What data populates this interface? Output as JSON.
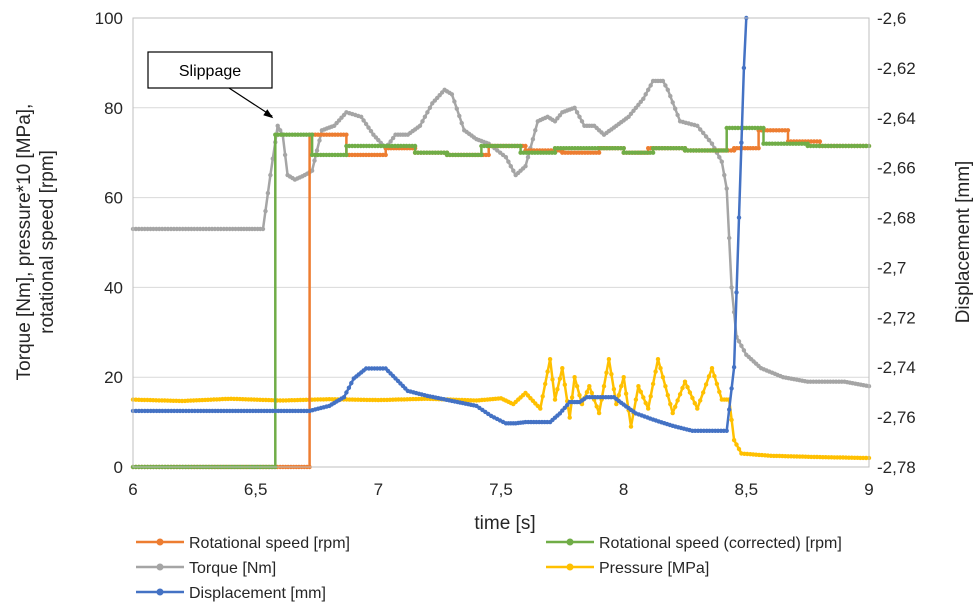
{
  "chart_data": {
    "type": "line",
    "title": "",
    "xlabel": "time [s]",
    "ylabel_left": [
      "Torque [Nm], pressure*10 [MPa],",
      "rotational speed [rpm]"
    ],
    "ylabel_right": "Displacement [mm]",
    "xlim": [
      6,
      9
    ],
    "ylim_left": [
      0,
      100
    ],
    "ylim_right": [
      -2.78,
      -2.6
    ],
    "x_ticks": [
      "6",
      "6,5",
      "7",
      "7,5",
      "8",
      "8,5",
      "9"
    ],
    "y_left_ticks": [
      "0",
      "20",
      "40",
      "60",
      "80",
      "100"
    ],
    "y_right_ticks": [
      "-2,78",
      "-2,76",
      "-2,74",
      "-2,72",
      "-2,7",
      "-2,68",
      "-2,66",
      "-2,64",
      "-2,62",
      "-2,6"
    ],
    "grid": "horizontal",
    "legend_position": "bottom",
    "annotation": {
      "text": "Slippage",
      "x": 6.58,
      "y": 77
    },
    "series": [
      {
        "name": "Rotational speed [rpm]",
        "axis": "left",
        "color": "#ED7D31",
        "points": [
          [
            6,
            0
          ],
          [
            6.6,
            0
          ],
          [
            6.72,
            0
          ],
          [
            6.72,
            74
          ],
          [
            6.87,
            74
          ],
          [
            6.87,
            69.5
          ],
          [
            7.03,
            69.5
          ],
          [
            7.03,
            71
          ],
          [
            7.15,
            71
          ],
          [
            7.15,
            70
          ],
          [
            7.28,
            70
          ],
          [
            7.28,
            69.5
          ],
          [
            7.45,
            69.5
          ],
          [
            7.45,
            71.5
          ],
          [
            7.6,
            71.5
          ],
          [
            7.6,
            70.5
          ],
          [
            7.75,
            70.5
          ],
          [
            7.75,
            70
          ],
          [
            7.9,
            70
          ],
          [
            7.9,
            71
          ],
          [
            8.0,
            71
          ],
          [
            8.0,
            70
          ],
          [
            8.1,
            70
          ],
          [
            8.1,
            71
          ],
          [
            8.25,
            71
          ],
          [
            8.25,
            70.5
          ],
          [
            8.45,
            70.5
          ],
          [
            8.45,
            71
          ],
          [
            8.55,
            71
          ],
          [
            8.55,
            75
          ],
          [
            8.67,
            75
          ],
          [
            8.67,
            72.5
          ],
          [
            8.8,
            72.5
          ],
          [
            8.8,
            71.5
          ],
          [
            9,
            71.5
          ]
        ]
      },
      {
        "name": "Rotational speed (corrected) [rpm]",
        "axis": "left",
        "color": "#70AD47",
        "points": [
          [
            6,
            0
          ],
          [
            6.58,
            0
          ],
          [
            6.58,
            74
          ],
          [
            6.73,
            74
          ],
          [
            6.73,
            69.5
          ],
          [
            6.87,
            69.5
          ],
          [
            6.87,
            71.5
          ],
          [
            7.15,
            71.5
          ],
          [
            7.15,
            70
          ],
          [
            7.28,
            70
          ],
          [
            7.28,
            69.5
          ],
          [
            7.42,
            69.5
          ],
          [
            7.42,
            71.5
          ],
          [
            7.58,
            71.5
          ],
          [
            7.58,
            70
          ],
          [
            7.72,
            70
          ],
          [
            7.72,
            71
          ],
          [
            8.0,
            71
          ],
          [
            8.0,
            70
          ],
          [
            8.12,
            70
          ],
          [
            8.12,
            71
          ],
          [
            8.25,
            71
          ],
          [
            8.25,
            70.5
          ],
          [
            8.42,
            70.5
          ],
          [
            8.42,
            75.5
          ],
          [
            8.57,
            75.5
          ],
          [
            8.57,
            72
          ],
          [
            8.75,
            72
          ],
          [
            8.75,
            71.5
          ],
          [
            9,
            71.5
          ]
        ]
      },
      {
        "name": "Torque [Nm]",
        "axis": "left",
        "color": "#A5A5A5",
        "points": [
          [
            6,
            53
          ],
          [
            6.25,
            53
          ],
          [
            6.43,
            53
          ],
          [
            6.53,
            53
          ],
          [
            6.56,
            65
          ],
          [
            6.59,
            76
          ],
          [
            6.61,
            74
          ],
          [
            6.63,
            65
          ],
          [
            6.66,
            64
          ],
          [
            6.7,
            65
          ],
          [
            6.73,
            66
          ],
          [
            6.77,
            75
          ],
          [
            6.82,
            76
          ],
          [
            6.87,
            79
          ],
          [
            6.93,
            78
          ],
          [
            6.98,
            74
          ],
          [
            7.03,
            71
          ],
          [
            7.07,
            74
          ],
          [
            7.12,
            74
          ],
          [
            7.17,
            76
          ],
          [
            7.22,
            81
          ],
          [
            7.27,
            84
          ],
          [
            7.3,
            83
          ],
          [
            7.35,
            75
          ],
          [
            7.4,
            73
          ],
          [
            7.45,
            72
          ],
          [
            7.52,
            69
          ],
          [
            7.56,
            65
          ],
          [
            7.6,
            67
          ],
          [
            7.65,
            77
          ],
          [
            7.69,
            78
          ],
          [
            7.72,
            77
          ],
          [
            7.75,
            79
          ],
          [
            7.8,
            80
          ],
          [
            7.84,
            76
          ],
          [
            7.88,
            76
          ],
          [
            7.92,
            74
          ],
          [
            7.97,
            76
          ],
          [
            8.02,
            78
          ],
          [
            8.08,
            82
          ],
          [
            8.12,
            86
          ],
          [
            8.16,
            86
          ],
          [
            8.18,
            84
          ],
          [
            8.23,
            77
          ],
          [
            8.3,
            76
          ],
          [
            8.36,
            72
          ],
          [
            8.4,
            68
          ],
          [
            8.42,
            62
          ],
          [
            8.44,
            40
          ],
          [
            8.46,
            29
          ],
          [
            8.5,
            25
          ],
          [
            8.56,
            22
          ],
          [
            8.65,
            20
          ],
          [
            8.75,
            19
          ],
          [
            8.82,
            19
          ],
          [
            8.9,
            19
          ],
          [
            9,
            18
          ]
        ]
      },
      {
        "name": "Pressure [MPa]",
        "axis": "left",
        "color": "#FFC000",
        "points": [
          [
            6,
            15
          ],
          [
            6.2,
            14.7
          ],
          [
            6.4,
            15.2
          ],
          [
            6.6,
            14.8
          ],
          [
            6.8,
            15.1
          ],
          [
            7.0,
            14.9
          ],
          [
            7.2,
            15.2
          ],
          [
            7.4,
            14.8
          ],
          [
            7.5,
            15.3
          ],
          [
            7.55,
            14
          ],
          [
            7.6,
            16.5
          ],
          [
            7.66,
            13
          ],
          [
            7.7,
            24
          ],
          [
            7.72,
            15
          ],
          [
            7.75,
            22
          ],
          [
            7.78,
            11
          ],
          [
            7.8,
            20
          ],
          [
            7.83,
            14
          ],
          [
            7.86,
            18
          ],
          [
            7.9,
            12
          ],
          [
            7.94,
            24
          ],
          [
            7.97,
            14
          ],
          [
            8.0,
            20
          ],
          [
            8.03,
            9
          ],
          [
            8.06,
            18
          ],
          [
            8.1,
            13
          ],
          [
            8.14,
            24
          ],
          [
            8.18,
            16
          ],
          [
            8.2,
            12
          ],
          [
            8.25,
            19
          ],
          [
            8.3,
            13
          ],
          [
            8.36,
            22
          ],
          [
            8.4,
            15
          ],
          [
            8.43,
            15
          ],
          [
            8.45,
            6
          ],
          [
            8.48,
            3
          ],
          [
            8.6,
            2.5
          ],
          [
            8.8,
            2.2
          ],
          [
            9,
            2
          ]
        ]
      },
      {
        "name": "Displacement [mm]",
        "axis": "right",
        "color": "#4472C4",
        "points": [
          [
            6,
            -2.7575
          ],
          [
            6.3,
            -2.7575
          ],
          [
            6.5,
            -2.7575
          ],
          [
            6.72,
            -2.7575
          ],
          [
            6.8,
            -2.7555
          ],
          [
            6.86,
            -2.752
          ],
          [
            6.9,
            -2.7445
          ],
          [
            6.95,
            -2.7405
          ],
          [
            7.03,
            -2.7405
          ],
          [
            7.07,
            -2.7445
          ],
          [
            7.12,
            -2.7495
          ],
          [
            7.2,
            -2.7515
          ],
          [
            7.3,
            -2.7535
          ],
          [
            7.4,
            -2.7555
          ],
          [
            7.46,
            -2.7595
          ],
          [
            7.52,
            -2.7625
          ],
          [
            7.56,
            -2.7625
          ],
          [
            7.6,
            -2.762
          ],
          [
            7.7,
            -2.762
          ],
          [
            7.74,
            -2.7585
          ],
          [
            7.78,
            -2.754
          ],
          [
            7.82,
            -2.754
          ],
          [
            7.85,
            -2.752
          ],
          [
            7.96,
            -2.752
          ],
          [
            8.0,
            -2.755
          ],
          [
            8.05,
            -2.7585
          ],
          [
            8.12,
            -2.761
          ],
          [
            8.2,
            -2.7635
          ],
          [
            8.28,
            -2.7655
          ],
          [
            8.35,
            -2.7655
          ],
          [
            8.42,
            -2.7655
          ],
          [
            8.45,
            -2.74
          ],
          [
            8.47,
            -2.68
          ],
          [
            8.49,
            -2.62
          ],
          [
            8.5,
            -2.6
          ]
        ]
      }
    ]
  }
}
